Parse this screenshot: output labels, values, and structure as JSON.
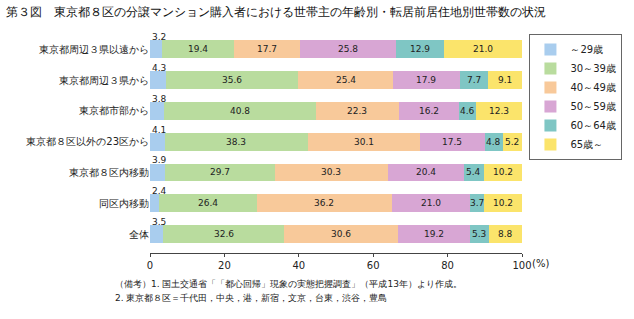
{
  "chart_data": {
    "type": "bar",
    "orientation": "horizontal",
    "stacked": true,
    "data_labels": true,
    "grid": false,
    "legend": "upper right",
    "title": "第３図　東京都８区の分譲マンション購入者における世帯主の年齢別・転居前居住地別世帯数の状況",
    "x_label": "(%)",
    "notes": [
      "（備考）1. 国土交通省「「都心回帰」現象の実態把握調査」（平成13年）より作成。",
      "2. 東京都８区＝千代田，中央，港，新宿，文京，台東，渋谷，豊島"
    ],
    "categories": [
      "東京都周辺３県以遠から",
      "東京都周辺３県から",
      "東京都市部から",
      "東京都８区以外の23区から",
      "東京都８区内移動",
      "同区内移動",
      "全体"
    ],
    "xlim": [
      0,
      100
    ],
    "xticks": [
      0,
      20,
      40,
      60,
      80,
      100
    ],
    "series": [
      {
        "name": "～29歳",
        "color": "#a9cdee",
        "values": [
          3.2,
          4.3,
          3.8,
          4.1,
          3.9,
          2.4,
          3.5
        ],
        "value_labels": [
          "3.2",
          "4.3",
          "3.8",
          "4.1",
          "3.9",
          "2.4",
          "3.5"
        ]
      },
      {
        "name": "30～39歳",
        "color": "#b9dc9e",
        "values": [
          19.4,
          35.6,
          40.8,
          38.3,
          29.7,
          26.4,
          32.6
        ],
        "value_labels": [
          "19.4",
          "35.6",
          "40.8",
          "38.3",
          "29.7",
          "26.4",
          "32.6"
        ]
      },
      {
        "name": "40～49歳",
        "color": "#f8c99a",
        "values": [
          17.7,
          25.4,
          22.3,
          30.1,
          30.3,
          36.2,
          30.6
        ],
        "value_labels": [
          "17.7",
          "25.4",
          "22.3",
          "30.1",
          "30.3",
          "36.2",
          "30.6"
        ]
      },
      {
        "name": "50～59歳",
        "color": "#d8a6d4",
        "values": [
          25.8,
          17.9,
          16.2,
          17.5,
          20.4,
          21.0,
          19.2
        ],
        "value_labels": [
          "25.8",
          "17.9",
          "16.2",
          "17.5",
          "20.4",
          "21.0",
          "19.2"
        ]
      },
      {
        "name": "60～64歳",
        "color": "#7fc6c4",
        "values": [
          12.9,
          7.7,
          4.6,
          4.8,
          5.4,
          3.7,
          5.3
        ],
        "value_labels": [
          "12.9",
          "7.7",
          "4.6",
          "4.8",
          "5.4",
          "3.7",
          "5.3"
        ]
      },
      {
        "name": "65歳～",
        "color": "#fbe46b",
        "values": [
          21.0,
          9.1,
          12.3,
          5.2,
          10.2,
          10.2,
          8.8
        ],
        "value_labels": [
          "21.0",
          "9.1",
          "12.3",
          "5.2",
          "10.2",
          "10.2",
          "8.8"
        ]
      }
    ]
  }
}
